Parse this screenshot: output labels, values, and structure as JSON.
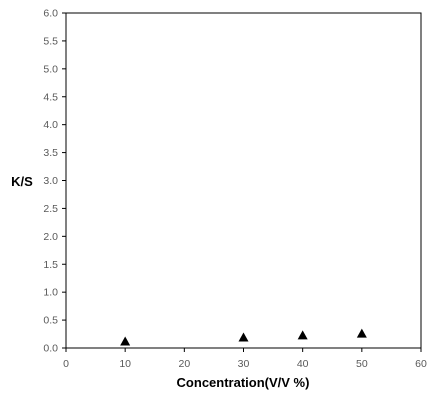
{
  "chart_data": {
    "type": "scatter",
    "title": "",
    "xlabel": "Concentration(V/V %)",
    "ylabel": "K/S",
    "xlim": [
      0,
      60
    ],
    "ylim": [
      0,
      6
    ],
    "x_ticks": [
      "0",
      "10",
      "20",
      "30",
      "40",
      "50",
      "60"
    ],
    "y_ticks": [
      "0.0",
      "0.5",
      "1.0",
      "1.5",
      "2.0",
      "2.5",
      "3.0",
      "3.5",
      "4.0",
      "4.5",
      "5.0",
      "5.5",
      "6.0"
    ],
    "grid": false,
    "marker": "triangle",
    "series": [
      {
        "x": [
          10,
          30,
          40,
          50
        ],
        "y": [
          0.11,
          0.18,
          0.22,
          0.25
        ]
      }
    ],
    "colors": {
      "marker": "#000000",
      "axis": "#000000",
      "tick_text": "#595959"
    }
  }
}
